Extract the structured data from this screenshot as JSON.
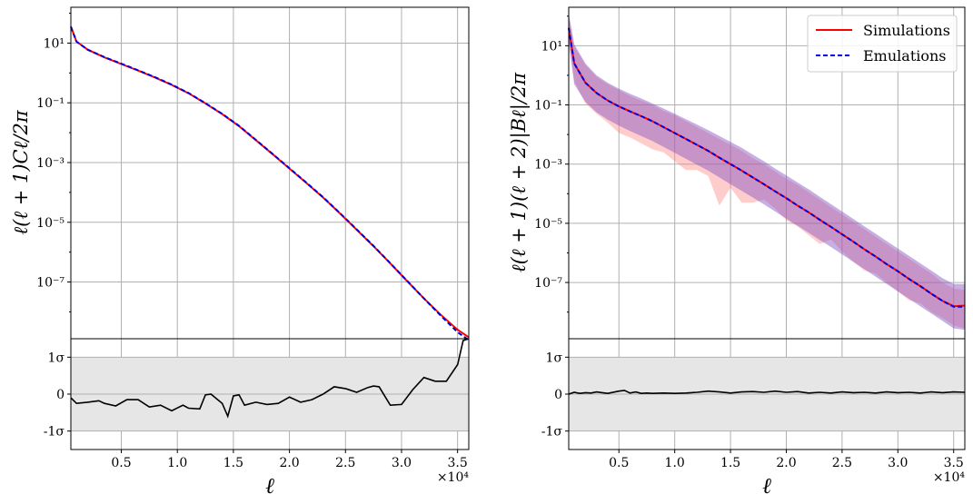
{
  "chart_data": [
    {
      "type": "line",
      "panel": "left",
      "ylabel": "ℓ(ℓ + 1)Cℓ/2π",
      "xlabel": "ℓ",
      "x_multiplier_label": "×10⁴",
      "xlim": [
        500,
        36000
      ],
      "ylog": true,
      "ylim_log10": [
        -8.9,
        2.2
      ],
      "grid": true,
      "x_ticks": [
        {
          "v": 5000,
          "label": "0.5"
        },
        {
          "v": 10000,
          "label": "1.0"
        },
        {
          "v": 15000,
          "label": "1.5"
        },
        {
          "v": 20000,
          "label": "2.0"
        },
        {
          "v": 25000,
          "label": "2.5"
        },
        {
          "v": 30000,
          "label": "3.0"
        },
        {
          "v": 35000,
          "label": "3.5"
        }
      ],
      "y_ticks": [
        {
          "e": 1,
          "label": "10¹"
        },
        {
          "e": -1,
          "label": "10⁻¹"
        },
        {
          "e": -3,
          "label": "10⁻³"
        },
        {
          "e": -5,
          "label": "10⁻⁵"
        },
        {
          "e": -7,
          "label": "10⁻⁷"
        }
      ],
      "x": [
        500,
        1000,
        2000,
        3500,
        5000,
        6500,
        8000,
        9500,
        11000,
        12500,
        14000,
        15500,
        17000,
        18500,
        20000,
        21500,
        23000,
        24500,
        26000,
        27500,
        29000,
        30500,
        32000,
        33500,
        35000,
        36000
      ],
      "series": [
        {
          "name": "Simulations",
          "color": "#ff0000",
          "dash": false,
          "log10_values": [
            1.55,
            1.05,
            0.78,
            0.52,
            0.3,
            0.08,
            -0.15,
            -0.4,
            -0.68,
            -1.02,
            -1.38,
            -1.78,
            -2.25,
            -2.72,
            -3.2,
            -3.68,
            -4.17,
            -4.7,
            -5.25,
            -5.8,
            -6.38,
            -6.97,
            -7.55,
            -8.1,
            -8.6,
            -8.85
          ]
        },
        {
          "name": "Emulations",
          "color": "#0000dd",
          "dash": true,
          "log10_values": [
            1.55,
            1.05,
            0.78,
            0.53,
            0.31,
            0.09,
            -0.14,
            -0.39,
            -0.67,
            -1.01,
            -1.37,
            -1.77,
            -2.24,
            -2.71,
            -3.19,
            -3.67,
            -4.16,
            -4.69,
            -5.24,
            -5.79,
            -6.37,
            -6.96,
            -7.55,
            -8.13,
            -8.68,
            -8.95
          ]
        }
      ],
      "residual": {
        "ylim": [
          -1.5,
          1.5
        ],
        "y_ticks": [
          {
            "v": 1,
            "label": "1σ"
          },
          {
            "v": 0,
            "label": "0"
          },
          {
            "v": -1,
            "label": "-1σ"
          }
        ],
        "band": [
          -1,
          1
        ],
        "x": [
          500,
          1000,
          2000,
          3000,
          3500,
          4500,
          5500,
          6500,
          7500,
          8500,
          9500,
          10500,
          11000,
          12000,
          12500,
          13000,
          14000,
          14500,
          15000,
          15500,
          16000,
          17000,
          18000,
          19000,
          20000,
          21000,
          22000,
          23000,
          24000,
          25000,
          26000,
          27000,
          27500,
          28000,
          29000,
          30000,
          31000,
          32000,
          33000,
          34000,
          35000,
          35500,
          36000
        ],
        "values": [
          -0.1,
          -0.25,
          -0.22,
          -0.18,
          -0.25,
          -0.32,
          -0.15,
          -0.15,
          -0.35,
          -0.3,
          -0.45,
          -0.3,
          -0.38,
          -0.4,
          -0.02,
          0.0,
          -0.25,
          -0.6,
          -0.05,
          -0.02,
          -0.3,
          -0.22,
          -0.28,
          -0.25,
          -0.08,
          -0.22,
          -0.15,
          0.0,
          0.2,
          0.15,
          0.05,
          0.18,
          0.22,
          0.2,
          -0.3,
          -0.28,
          0.12,
          0.45,
          0.35,
          0.35,
          0.8,
          1.45,
          1.55
        ]
      }
    },
    {
      "type": "line",
      "panel": "right",
      "ylabel": "ℓ(ℓ + 1)(ℓ + 2)|Bℓ|/2π",
      "xlabel": "ℓ",
      "x_multiplier_label": "×10⁴",
      "xlim": [
        500,
        36000
      ],
      "ylog": true,
      "ylim_log10": [
        -8.9,
        2.3
      ],
      "grid": true,
      "legend_position": "top-right",
      "x_ticks": [
        {
          "v": 5000,
          "label": "0.5"
        },
        {
          "v": 10000,
          "label": "1.0"
        },
        {
          "v": 15000,
          "label": "1.5"
        },
        {
          "v": 20000,
          "label": "2.0"
        },
        {
          "v": 25000,
          "label": "2.5"
        },
        {
          "v": 30000,
          "label": "3.0"
        },
        {
          "v": 35000,
          "label": "3.5"
        }
      ],
      "y_ticks": [
        {
          "e": 1,
          "label": "10¹"
        },
        {
          "e": -1,
          "label": "10⁻¹"
        },
        {
          "e": -3,
          "label": "10⁻³"
        },
        {
          "e": -5,
          "label": "10⁻⁵"
        },
        {
          "e": -7,
          "label": "10⁻⁷"
        }
      ],
      "x": [
        500,
        1000,
        2000,
        3000,
        4000,
        5000,
        6000,
        7000,
        8000,
        9000,
        10000,
        11000,
        12000,
        13000,
        14000,
        15000,
        16000,
        17000,
        18000,
        19000,
        20000,
        21000,
        22000,
        23000,
        24000,
        25000,
        26000,
        27000,
        28000,
        29000,
        30000,
        31000,
        32000,
        33000,
        34000,
        35000,
        36000
      ],
      "series": [
        {
          "name": "Simulations",
          "color": "#ff0000",
          "dash": false,
          "log10_values": [
            1.6,
            0.4,
            -0.25,
            -0.6,
            -0.85,
            -1.05,
            -1.22,
            -1.38,
            -1.55,
            -1.75,
            -1.95,
            -2.15,
            -2.35,
            -2.55,
            -2.78,
            -3.0,
            -3.22,
            -3.45,
            -3.68,
            -3.92,
            -4.15,
            -4.4,
            -4.63,
            -4.88,
            -5.12,
            -5.37,
            -5.62,
            -5.88,
            -6.12,
            -6.38,
            -6.62,
            -6.88,
            -7.12,
            -7.38,
            -7.62,
            -7.8,
            -7.78
          ]
        },
        {
          "name": "Emulations",
          "color": "#0000dd",
          "dash": true,
          "log10_values": [
            1.6,
            0.4,
            -0.25,
            -0.6,
            -0.85,
            -1.05,
            -1.22,
            -1.38,
            -1.55,
            -1.75,
            -1.95,
            -2.15,
            -2.35,
            -2.55,
            -2.78,
            -3.0,
            -3.22,
            -3.45,
            -3.68,
            -3.92,
            -4.15,
            -4.4,
            -4.63,
            -4.88,
            -5.12,
            -5.37,
            -5.62,
            -5.88,
            -6.12,
            -6.38,
            -6.62,
            -6.88,
            -7.12,
            -7.38,
            -7.62,
            -7.82,
            -7.82
          ]
        }
      ],
      "bands": [
        {
          "series": "Simulations",
          "color": "#ff8080",
          "opacity": 0.4,
          "upper": [
            2.0,
            1.0,
            0.35,
            -0.05,
            -0.3,
            -0.5,
            -0.7,
            -0.85,
            -1.0,
            -1.2,
            -1.35,
            -1.55,
            -1.75,
            -1.95,
            -2.15,
            -2.35,
            -2.55,
            -2.8,
            -3.0,
            -3.25,
            -3.5,
            -3.7,
            -3.95,
            -4.2,
            -4.45,
            -4.7,
            -4.95,
            -5.2,
            -5.45,
            -5.7,
            -5.95,
            -6.2,
            -6.45,
            -6.7,
            -7.0,
            -7.2,
            -7.25
          ],
          "lower": [
            1.2,
            -0.2,
            -0.95,
            -1.3,
            -1.6,
            -1.95,
            -2.1,
            -2.3,
            -2.5,
            -2.6,
            -2.9,
            -3.2,
            -3.2,
            -3.4,
            -4.4,
            -3.8,
            -4.3,
            -4.3,
            -4.2,
            -4.5,
            -4.9,
            -5.1,
            -5.4,
            -5.7,
            -5.55,
            -5.95,
            -6.3,
            -6.6,
            -6.7,
            -7.0,
            -7.3,
            -7.6,
            -7.7,
            -8.0,
            -8.2,
            -8.45,
            -8.55
          ]
        },
        {
          "series": "Emulations",
          "color": "#8050c0",
          "opacity": 0.45,
          "upper": [
            2.1,
            1.05,
            0.4,
            0.0,
            -0.25,
            -0.45,
            -0.62,
            -0.78,
            -0.95,
            -1.12,
            -1.3,
            -1.48,
            -1.66,
            -1.85,
            -2.05,
            -2.25,
            -2.45,
            -2.68,
            -2.9,
            -3.15,
            -3.38,
            -3.62,
            -3.85,
            -4.1,
            -4.35,
            -4.6,
            -4.85,
            -5.1,
            -5.35,
            -5.6,
            -5.85,
            -6.1,
            -6.35,
            -6.6,
            -6.85,
            -7.05,
            -7.05
          ],
          "lower": [
            1.1,
            -0.3,
            -0.9,
            -1.25,
            -1.5,
            -1.7,
            -1.88,
            -2.05,
            -2.22,
            -2.42,
            -2.62,
            -2.82,
            -3.02,
            -3.22,
            -3.45,
            -3.68,
            -3.9,
            -4.13,
            -4.36,
            -4.6,
            -4.84,
            -5.08,
            -5.32,
            -5.56,
            -5.8,
            -6.05,
            -6.3,
            -6.55,
            -6.8,
            -7.05,
            -7.3,
            -7.55,
            -7.8,
            -8.05,
            -8.3,
            -8.55,
            -8.6
          ]
        }
      ],
      "residual": {
        "ylim": [
          -1.5,
          1.5
        ],
        "y_ticks": [
          {
            "v": 1,
            "label": "1σ"
          },
          {
            "v": 0,
            "label": "0"
          },
          {
            "v": -1,
            "label": "-1σ"
          }
        ],
        "band": [
          -1,
          1
        ],
        "x": [
          500,
          1000,
          1500,
          2000,
          2500,
          3000,
          3500,
          4000,
          5000,
          5500,
          6000,
          6500,
          7000,
          7500,
          8000,
          9000,
          10000,
          11000,
          12000,
          13000,
          14000,
          15000,
          16000,
          17000,
          18000,
          19000,
          20000,
          21000,
          22000,
          23000,
          24000,
          25000,
          26000,
          27000,
          28000,
          29000,
          30000,
          31000,
          32000,
          33000,
          34000,
          35000,
          36000
        ],
        "values": [
          0.0,
          0.05,
          0.02,
          0.04,
          0.03,
          0.06,
          0.04,
          0.02,
          0.08,
          0.1,
          0.03,
          0.06,
          0.02,
          0.03,
          0.02,
          0.03,
          0.02,
          0.03,
          0.05,
          0.08,
          0.06,
          0.03,
          0.06,
          0.07,
          0.05,
          0.08,
          0.05,
          0.07,
          0.03,
          0.05,
          0.03,
          0.06,
          0.04,
          0.05,
          0.03,
          0.06,
          0.04,
          0.05,
          0.03,
          0.06,
          0.04,
          0.06,
          0.05
        ]
      }
    }
  ],
  "legend": {
    "items": [
      {
        "label": "Simulations",
        "color": "#ff0000",
        "dash": false
      },
      {
        "label": "Emulations",
        "color": "#0000dd",
        "dash": true
      }
    ]
  }
}
